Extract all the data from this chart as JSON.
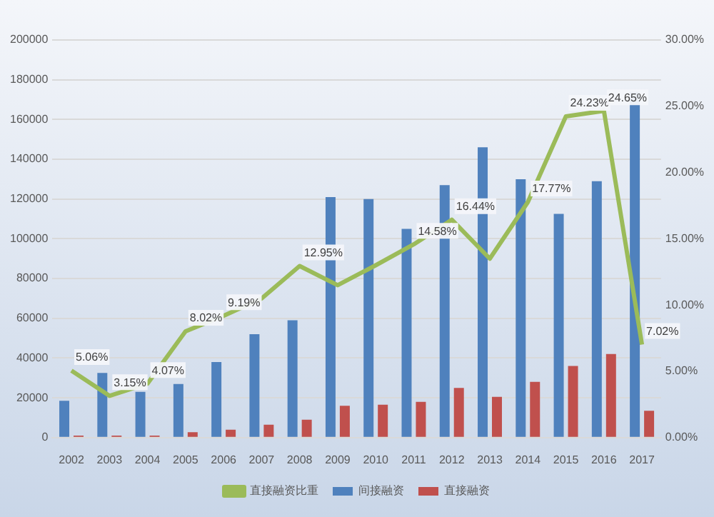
{
  "chart_data": {
    "type": "bar",
    "categories": [
      "2002",
      "2003",
      "2004",
      "2005",
      "2006",
      "2007",
      "2008",
      "2009",
      "2010",
      "2011",
      "2012",
      "2013",
      "2014",
      "2015",
      "2016",
      "2017"
    ],
    "series": [
      {
        "name": "间接融资",
        "color": "#4f81bd",
        "values": [
          18500,
          32500,
          23000,
          27000,
          38000,
          52000,
          59000,
          121000,
          120000,
          105000,
          127000,
          146000,
          130000,
          112500,
          129000,
          174000
        ]
      },
      {
        "name": "直接融资",
        "color": "#c0504d",
        "values": [
          1000,
          1000,
          1000,
          2700,
          4000,
          6500,
          9000,
          16000,
          16500,
          18000,
          25000,
          20500,
          28000,
          36000,
          42000,
          13500
        ]
      },
      {
        "name": "直接融资比重",
        "type": "line",
        "axis": "y2",
        "color": "#9bbb59",
        "marker": "none",
        "values": [
          5.06,
          3.15,
          4.07,
          8.02,
          9.19,
          10.5,
          12.95,
          11.5,
          13,
          14.58,
          16.44,
          13.5,
          17.77,
          24.23,
          24.65,
          7.02
        ],
        "value_labels": [
          "5.06%",
          "3.15%",
          "4.07%",
          "8.02%",
          "9.19%",
          null,
          "12.95%",
          null,
          null,
          "14.58%",
          "16.44%",
          null,
          "17.77%",
          "24.23%",
          "24.65%",
          "7.02%"
        ]
      }
    ],
    "ylim": [
      0,
      200000
    ],
    "yticks": [
      0,
      20000,
      40000,
      60000,
      80000,
      100000,
      120000,
      140000,
      160000,
      180000,
      200000
    ],
    "y2lim": [
      0,
      30
    ],
    "y2ticks": [
      {
        "value": 0,
        "label": "0.00%"
      },
      {
        "value": 5,
        "label": "5.00%"
      },
      {
        "value": 10,
        "label": "10.00%"
      },
      {
        "value": 15,
        "label": "15.00%"
      },
      {
        "value": 20,
        "label": "20.00%"
      },
      {
        "value": 25,
        "label": "25.00%"
      },
      {
        "value": 30,
        "label": "30.00%"
      }
    ],
    "grid": "y",
    "legend": "bottom"
  }
}
